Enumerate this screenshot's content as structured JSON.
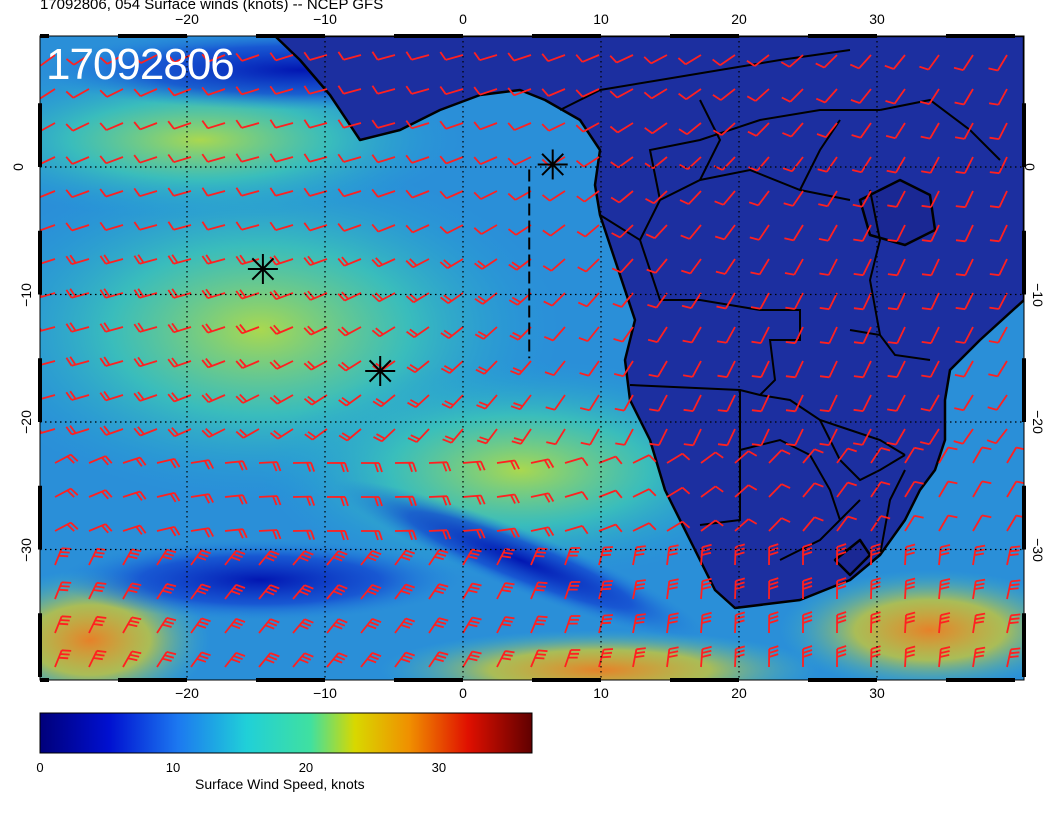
{
  "title": "17092806, 054 Surface winds (knots) -- NCEP GFS",
  "stamp": "17092806",
  "lon_ticks": [
    {
      "label": "−20",
      "value": -20
    },
    {
      "label": "−10",
      "value": -10
    },
    {
      "label": "0",
      "value": 0
    },
    {
      "label": "10",
      "value": 10
    },
    {
      "label": "20",
      "value": 20
    },
    {
      "label": "30",
      "value": 30
    }
  ],
  "lat_ticks": [
    {
      "label": "0",
      "value": 0
    },
    {
      "label": "−10",
      "value": -10
    },
    {
      "label": "−20",
      "value": -20
    },
    {
      "label": "−30",
      "value": -30
    }
  ],
  "colorbar": {
    "label": "Surface Wind Speed, knots",
    "ticks": [
      {
        "label": "0",
        "value": 0
      },
      {
        "label": "10",
        "value": 10
      },
      {
        "label": "20",
        "value": 20
      },
      {
        "label": "30",
        "value": 30
      }
    ],
    "min": 0,
    "max": 37
  },
  "markers": [
    {
      "lon": -14.5,
      "lat": -8
    },
    {
      "lon": -6,
      "lat": -16
    },
    {
      "lon": 6.5,
      "lat": 0.2
    }
  ],
  "flight_track": [
    [
      4.8,
      -0.2
    ],
    [
      4.8,
      -15
    ]
  ],
  "colors": {
    "barb": "#ff2020",
    "land": "#1c2fa0",
    "ocean": "#27a0d8"
  }
}
